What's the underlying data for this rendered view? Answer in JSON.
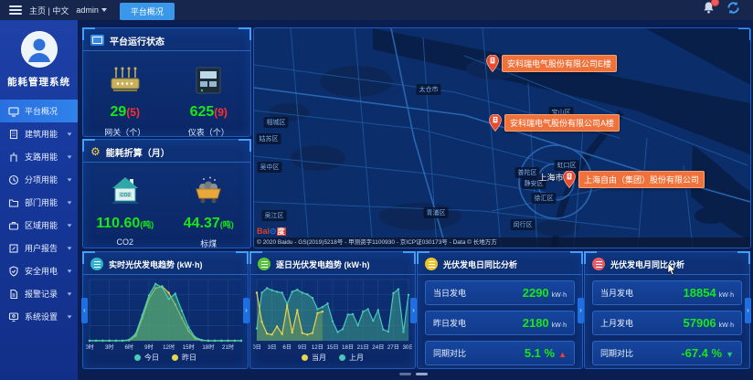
{
  "topbar": {
    "home_label": "主页 | 中文",
    "user": "admin",
    "tab": "平台概况"
  },
  "sidebar": {
    "app_title": "能耗管理系统",
    "items": [
      {
        "icon": "overview-icon",
        "label": "平台概况",
        "active": true
      },
      {
        "icon": "building-icon",
        "label": "建筑用能"
      },
      {
        "icon": "branch-icon",
        "label": "支路用能"
      },
      {
        "icon": "subentry-icon",
        "label": "分项用能"
      },
      {
        "icon": "department-icon",
        "label": "部门用能"
      },
      {
        "icon": "region-icon",
        "label": "区域用能"
      },
      {
        "icon": "report-icon",
        "label": "用户报告"
      },
      {
        "icon": "safety-icon",
        "label": "安全用电"
      },
      {
        "icon": "alarm-log-icon",
        "label": "报警记录"
      },
      {
        "icon": "settings-icon",
        "label": "系统设置"
      }
    ]
  },
  "status_panel": {
    "title": "平台运行状态",
    "stats": [
      {
        "icon": "gateway-icon",
        "value": "29",
        "alarm": "(5)",
        "label": "网关（个）"
      },
      {
        "icon": "meter-icon",
        "value": "625",
        "alarm": "(9)",
        "label": "仪表（个）"
      }
    ]
  },
  "conversion_panel": {
    "title": "能耗折算（月）",
    "stats": [
      {
        "icon": "co2-house-icon",
        "value": "110.60",
        "unit": "(吨)",
        "label": "CO2"
      },
      {
        "icon": "coal-cart-icon",
        "value": "44.37",
        "unit": "(吨)",
        "label": "标煤"
      }
    ]
  },
  "map": {
    "city": "上海市",
    "districts": [
      "太仓市",
      "宝山区",
      "相城区",
      "姑苏区",
      "吴中区",
      "吴江区",
      "青浦区",
      "虹口区",
      "普陀区",
      "静安区",
      "徐汇区",
      "闵行区"
    ],
    "markers": [
      {
        "label": "安科瑞电气股份有限公司E楼"
      },
      {
        "label": "安科瑞电气股份有限公司A楼"
      },
      {
        "label": "上海自由（集团）股份有限公司"
      }
    ],
    "logo": {
      "bai": "Bai",
      "du": "度"
    },
    "attribution": "© 2020 Baidu - GS(2019)5218号 - 甲测资字1100930 - 京ICP证030173号 - Data © 长地万方"
  },
  "chart_data": [
    {
      "type": "area",
      "title": "实时光伏发电趋势 (kW·h)",
      "x_count": 24,
      "tick_positions": [
        0,
        3,
        6,
        9,
        12,
        15,
        18,
        21
      ],
      "tick_labels": [
        "0时",
        "3时",
        "6时",
        "9时",
        "12时",
        "15时",
        "18时",
        "21时"
      ],
      "ylim": [
        0,
        250
      ],
      "grid": true,
      "legend_position": "bottom",
      "series": [
        {
          "name": "今日",
          "color": "#43d0b4",
          "fill": "rgba(64,170,130,0.55)",
          "values": [
            0,
            0,
            0,
            0,
            0,
            0,
            4,
            28,
            105,
            185,
            232,
            218,
            170,
            192,
            122,
            55,
            14,
            3,
            0,
            0,
            0,
            0,
            0,
            0
          ]
        },
        {
          "name": "昨日",
          "color": "#e8d44d",
          "fill": "rgba(150,180,80,0.45)",
          "values": [
            0,
            0,
            0,
            0,
            0,
            0,
            2,
            20,
            92,
            172,
            215,
            222,
            196,
            148,
            92,
            40,
            9,
            2,
            0,
            0,
            0,
            0,
            0,
            0
          ]
        }
      ]
    },
    {
      "type": "area",
      "title": "逐日光伏发电趋势 (kW·h)",
      "x_count": 31,
      "tick_positions": [
        0,
        3,
        6,
        9,
        12,
        15,
        18,
        21,
        24,
        27,
        30
      ],
      "tick_labels": [
        "0日",
        "3日",
        "6日",
        "9日",
        "12日",
        "15日",
        "18日",
        "21日",
        "24日",
        "27日",
        "30日"
      ],
      "ylim": [
        0,
        600
      ],
      "grid": true,
      "legend_position": "bottom",
      "series": [
        {
          "name": "当月",
          "color": "#e8d44d",
          "fill": "rgba(150,180,80,0.35)",
          "values": [
            470,
            185,
            70,
            60,
            140,
            65,
            345,
            80,
            300,
            75,
            60,
            75,
            270,
            285
          ]
        },
        {
          "name": "上月",
          "color": "#49c7b8",
          "fill": "rgba(64,170,140,0.5)",
          "values": [
            120,
            470,
            515,
            495,
            480,
            470,
            360,
            480,
            500,
            470,
            455,
            420,
            310,
            330,
            365,
            190,
            85,
            115,
            255,
            260,
            150,
            285,
            310,
            195,
            300,
            110,
            90,
            465,
            505,
            85,
            450
          ]
        }
      ]
    }
  ],
  "daily_panel": {
    "title": "光伏发电日同比分析",
    "rows": [
      {
        "label": "当日发电",
        "value": "2290",
        "unit": "kW·h"
      },
      {
        "label": "昨日发电",
        "value": "2180",
        "unit": "kW·h"
      },
      {
        "label": "同期对比",
        "value": "5.1 %",
        "arrow": "▲",
        "trend": "up"
      }
    ]
  },
  "monthly_panel": {
    "title": "光伏发电月同比分析",
    "rows": [
      {
        "label": "当月发电",
        "value": "18854",
        "unit": "kW·h"
      },
      {
        "label": "上月发电",
        "value": "57906",
        "unit": "kW·h"
      },
      {
        "label": "同期对比",
        "value": "-67.4 %",
        "arrow": "▼",
        "trend": "down"
      }
    ]
  }
}
